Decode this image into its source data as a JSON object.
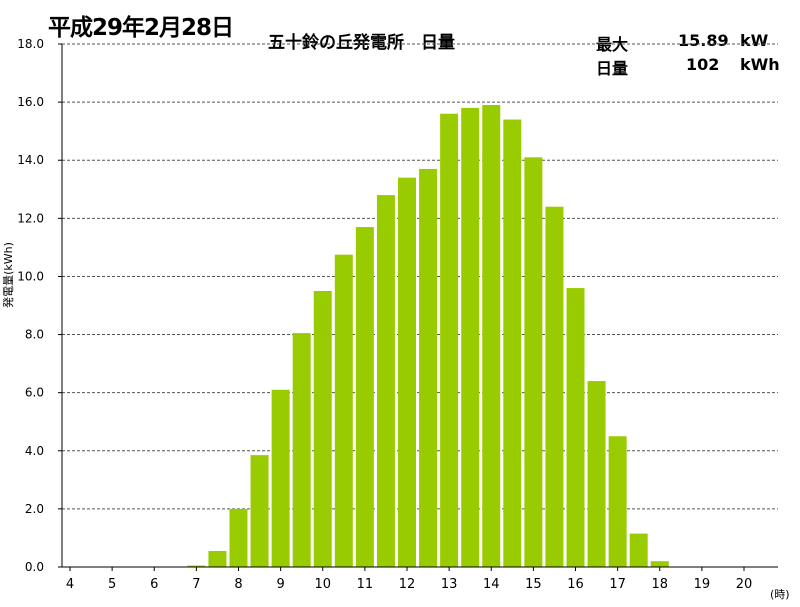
{
  "header": {
    "date": "平成29年2月28日",
    "title": "五十鈴の丘発電所　日量",
    "max_label": "最大",
    "max_value": "15.89",
    "max_unit": "kW",
    "daily_label": "日量",
    "daily_value": "102",
    "daily_unit": "kWh"
  },
  "chart_data": {
    "type": "bar",
    "title": "五十鈴の丘発電所　日量",
    "ylabel": "発電量(kWh)",
    "xunit": "(時)",
    "ylim": [
      0,
      18
    ],
    "yticks": [
      "0.0",
      "2.0",
      "4.0",
      "6.0",
      "8.0",
      "10.0",
      "12.0",
      "14.0",
      "16.0",
      "18.0"
    ],
    "xlim": [
      4,
      20
    ],
    "xticks": [
      "4",
      "5",
      "6",
      "7",
      "8",
      "9",
      "10",
      "11",
      "12",
      "13",
      "14",
      "15",
      "16",
      "17",
      "18",
      "19",
      "20"
    ],
    "grid": true,
    "bar_color": "#99cc00",
    "x": [
      6.5,
      7.0,
      7.5,
      8.0,
      8.5,
      9.0,
      9.5,
      10.0,
      10.5,
      11.0,
      11.5,
      12.0,
      12.5,
      13.0,
      13.5,
      14.0,
      14.5,
      15.0,
      15.5,
      16.0,
      16.5,
      17.0,
      17.5,
      18.0
    ],
    "values": [
      0.0,
      0.05,
      0.55,
      2.0,
      3.85,
      6.1,
      8.05,
      9.5,
      10.75,
      11.7,
      12.8,
      13.4,
      13.7,
      15.6,
      15.8,
      15.9,
      15.4,
      14.1,
      12.4,
      9.6,
      6.4,
      4.5,
      1.15,
      0.2
    ]
  }
}
